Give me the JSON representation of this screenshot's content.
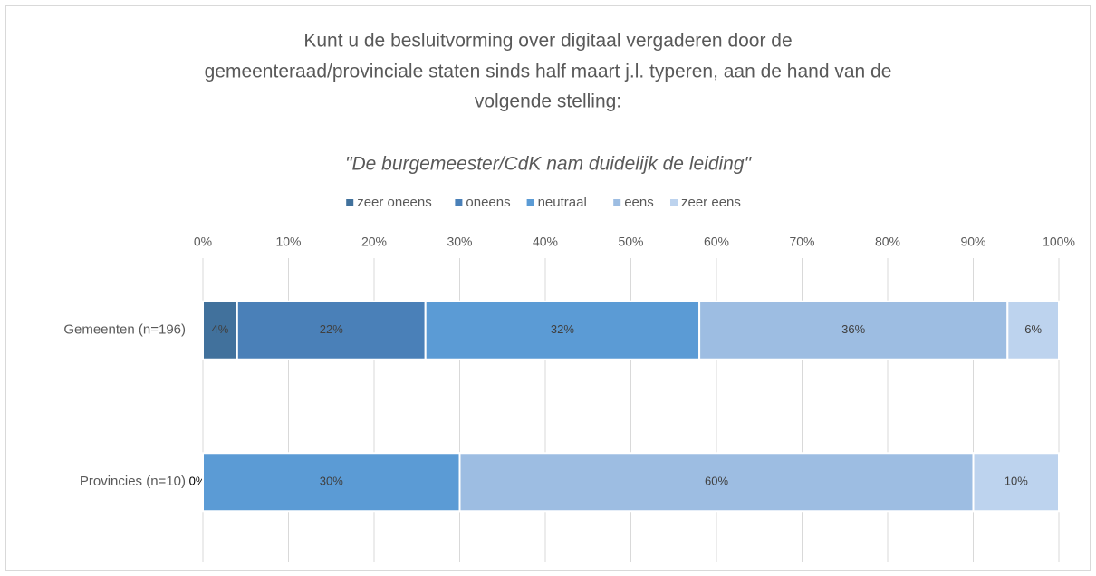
{
  "chart_data": {
    "type": "stacked-bar-horizontal",
    "title": [
      "Kunt u de besluitvorming over digitaal vergaderen door de",
      "gemeenteraad/provinciale staten sinds half maart j.l. typeren, aan de hand van de",
      "volgende stelling:"
    ],
    "subtitle": "\"De burgemeester/CdK nam duidelijk de leiding\"",
    "categories": [
      "Gemeenten (n=196)",
      "Provincies (n=10)"
    ],
    "series": [
      {
        "name": "zeer oneens",
        "color": "#41719c",
        "values": [
          4,
          0
        ],
        "value_labels": [
          "4%",
          "0%"
        ]
      },
      {
        "name": "oneens",
        "color": "#4a80b8",
        "values": [
          22,
          null
        ],
        "value_labels": [
          "22%",
          null
        ]
      },
      {
        "name": "neutraal",
        "color": "#5b9bd5",
        "values": [
          32,
          30
        ],
        "value_labels": [
          "32%",
          "30%"
        ]
      },
      {
        "name": "eens",
        "color": "#9dbde2",
        "values": [
          36,
          60
        ],
        "value_labels": [
          "36%",
          "60%"
        ]
      },
      {
        "name": "zeer eens",
        "color": "#bdd3ee",
        "values": [
          6,
          10
        ],
        "value_labels": [
          "6%",
          "10%"
        ]
      }
    ],
    "xlim": [
      0,
      100
    ],
    "xticks": [
      {
        "value": 0,
        "label": "0%"
      },
      {
        "value": 10,
        "label": "10%"
      },
      {
        "value": 20,
        "label": "20%"
      },
      {
        "value": 30,
        "label": "30%"
      },
      {
        "value": 40,
        "label": "40%"
      },
      {
        "value": 50,
        "label": "50%"
      },
      {
        "value": 60,
        "label": "60%"
      },
      {
        "value": 70,
        "label": "70%"
      },
      {
        "value": 80,
        "label": "80%"
      },
      {
        "value": 90,
        "label": "90%"
      },
      {
        "value": 100,
        "label": "100%"
      }
    ],
    "grid": true,
    "legend": "top"
  }
}
